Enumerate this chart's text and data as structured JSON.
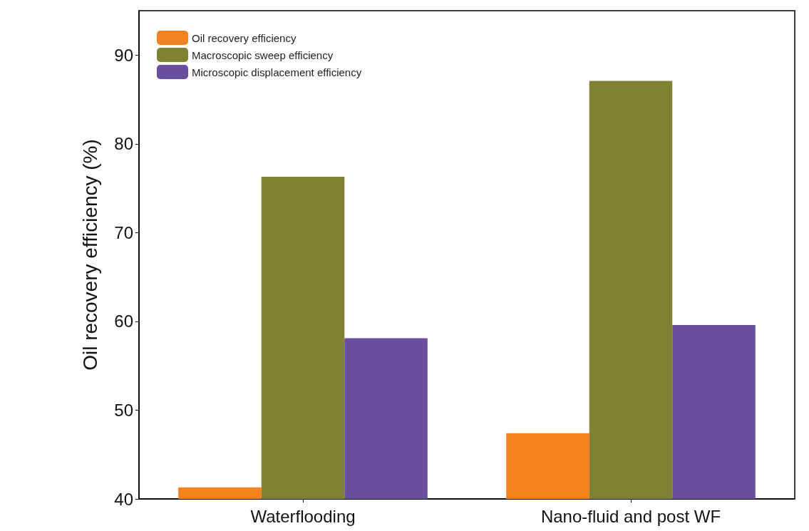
{
  "chart_data": {
    "type": "bar",
    "ylabel": "Oil recovery efficiency (%)",
    "categories": [
      "Waterflooding",
      "Nano-fluid and post WF"
    ],
    "series": [
      {
        "name": "Oil recovery efficiency",
        "color": "#f5821f",
        "values": [
          41.3,
          47.4
        ]
      },
      {
        "name": "Macroscopic sweep efficiency",
        "color": "#7f8233",
        "values": [
          76.3,
          87.1
        ]
      },
      {
        "name": "Microscopic displacement efficiency",
        "color": "#6a4fa0",
        "values": [
          58.1,
          59.6
        ]
      }
    ],
    "ylim": [
      40,
      95
    ],
    "yticks": [
      40,
      50,
      60,
      70,
      80,
      90
    ],
    "grid": false,
    "legend": "top left"
  }
}
